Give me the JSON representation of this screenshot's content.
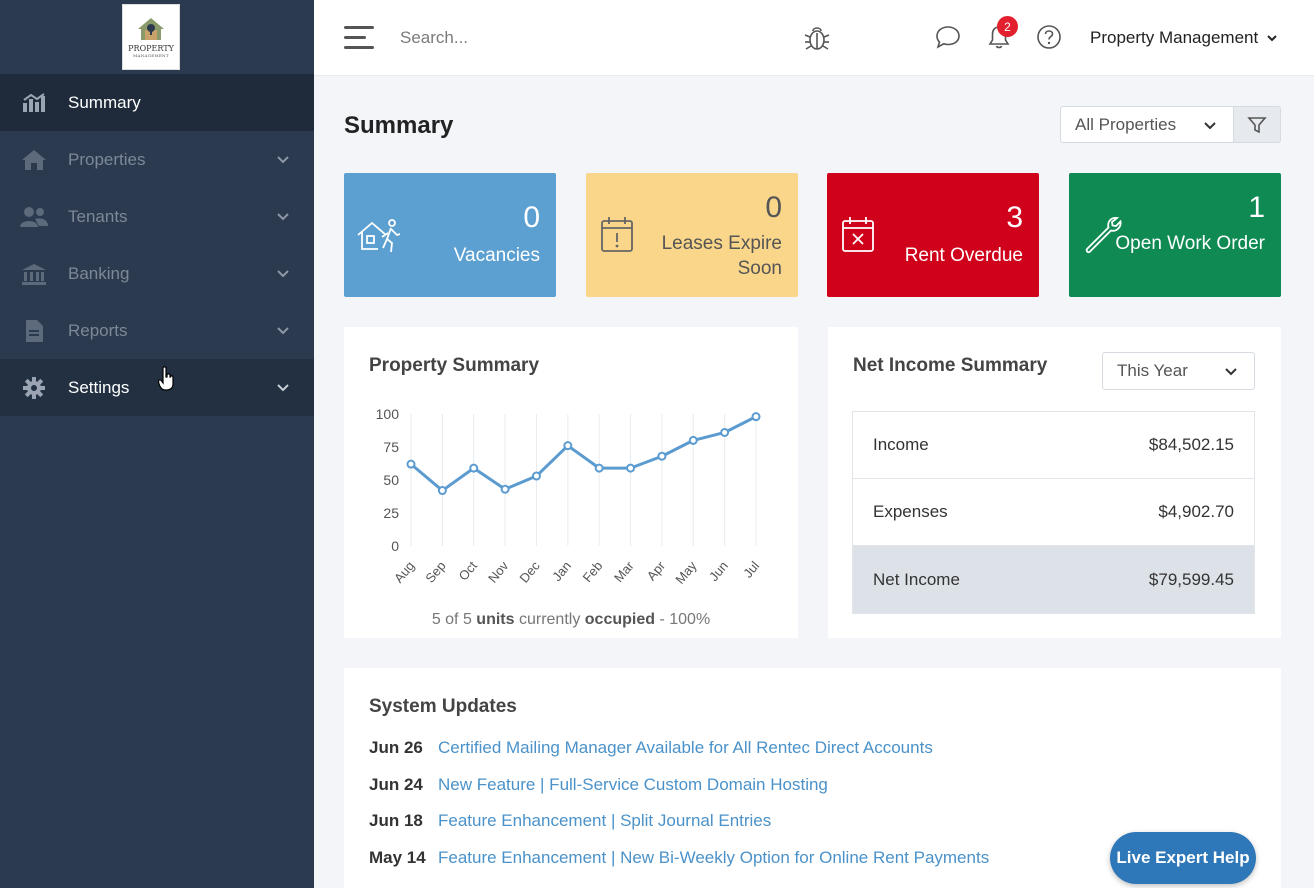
{
  "logo": {
    "text": "PROPERTY",
    "subtext": "MANAGEMENT"
  },
  "sidebar": {
    "items": [
      {
        "label": "Summary",
        "icon": "chart-icon"
      },
      {
        "label": "Properties",
        "icon": "home-icon"
      },
      {
        "label": "Tenants",
        "icon": "users-icon"
      },
      {
        "label": "Banking",
        "icon": "bank-icon"
      },
      {
        "label": "Reports",
        "icon": "file-icon"
      },
      {
        "label": "Settings",
        "icon": "gear-icon"
      }
    ]
  },
  "topbar": {
    "search_placeholder": "Search...",
    "notification_count": "2",
    "account_label": "Property Management"
  },
  "page": {
    "title": "Summary",
    "property_filter": "All Properties"
  },
  "cards": {
    "vacancies": {
      "value": "0",
      "label": "Vacancies",
      "color": "#5ca0d1"
    },
    "leases": {
      "value": "0",
      "label": "Leases Expire Soon",
      "color": "#fad68a"
    },
    "rent": {
      "value": "3",
      "label": "Rent Overdue",
      "color": "#d0021b"
    },
    "work": {
      "value": "1",
      "label": "Open Work Order",
      "color": "#0e8a52"
    }
  },
  "property_summary": {
    "title": "Property Summary",
    "occupied_count": "5 of 5",
    "occupied_units": "units",
    "occupied_mid": "currently",
    "occupied_word": "occupied",
    "occupied_pct": "- 100%"
  },
  "chart_data": {
    "type": "line",
    "categories": [
      "Aug",
      "Sep",
      "Oct",
      "Nov",
      "Dec",
      "Jan",
      "Feb",
      "Mar",
      "Apr",
      "May",
      "Jun",
      "Jul"
    ],
    "values": [
      62,
      42,
      59,
      43,
      53,
      76,
      59,
      59,
      68,
      80,
      86,
      98
    ],
    "yticks": [
      0,
      25,
      50,
      75,
      100
    ],
    "ylim": [
      0,
      100
    ],
    "color": "#5b9bd0"
  },
  "net_income": {
    "title": "Net Income Summary",
    "period": "This Year",
    "rows": [
      {
        "label": "Income",
        "value": "$84,502.15"
      },
      {
        "label": "Expenses",
        "value": "$4,902.70"
      },
      {
        "label": "Net Income",
        "value": "$79,599.45"
      }
    ]
  },
  "updates": {
    "title": "System Updates",
    "items": [
      {
        "date": "Jun 26",
        "text": "Certified Mailing Manager Available for All Rentec Direct Accounts"
      },
      {
        "date": "Jun 24",
        "text": "New Feature | Full-Service Custom Domain Hosting"
      },
      {
        "date": "Jun 18",
        "text": "Feature Enhancement | Split Journal Entries"
      },
      {
        "date": "May 14",
        "text": "Feature Enhancement | New Bi-Weekly Option for Online Rent Payments"
      }
    ]
  },
  "live_help": "Live Expert Help"
}
